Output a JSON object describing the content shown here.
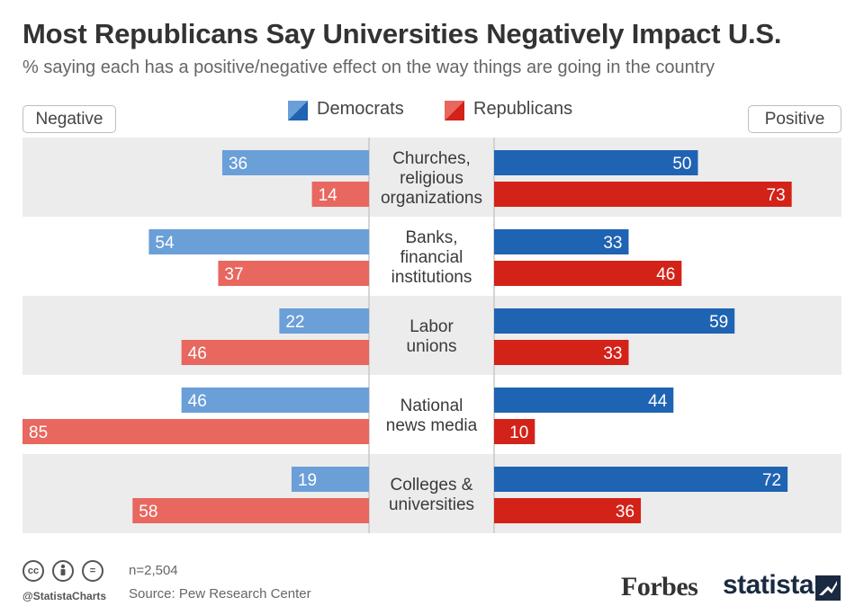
{
  "title": "Most Republicans Say Universities Negatively Impact U.S.",
  "subtitle": "% saying each has a positive/negative effect on the way things are going in the country",
  "negative_label": "Negative",
  "positive_label": "Positive",
  "colors": {
    "dem_positive": "#1f63b3",
    "dem_negative": "#6a9fd8",
    "rep_positive": "#d32218",
    "rep_negative": "#e8675f",
    "band": "#ececec",
    "divider": "#c8c8c8"
  },
  "footer": {
    "handle": "@StatistaCharts",
    "note": "n=2,504",
    "source": "Source: Pew Research Center",
    "forbes": "Forbes",
    "statista": "statista",
    "cc_icons": [
      "cc",
      "by",
      "="
    ]
  },
  "chart_data": {
    "type": "bar",
    "orientation": "diverging-horizontal",
    "categories": [
      [
        "Churches,",
        "religious",
        "organizations"
      ],
      [
        "Banks,",
        "financial",
        "institutions"
      ],
      [
        "Labor",
        "unions"
      ],
      [
        "National",
        "news media"
      ],
      [
        "Colleges &",
        "universities"
      ]
    ],
    "series": [
      {
        "name": "Democrats",
        "negative": [
          36,
          54,
          22,
          46,
          19
        ],
        "positive": [
          50,
          33,
          59,
          44,
          72
        ]
      },
      {
        "name": "Republicans",
        "negative": [
          14,
          37,
          46,
          85,
          58
        ],
        "positive": [
          73,
          46,
          33,
          10,
          36
        ]
      }
    ],
    "legend": "top-center",
    "xlim": [
      0,
      85
    ]
  }
}
